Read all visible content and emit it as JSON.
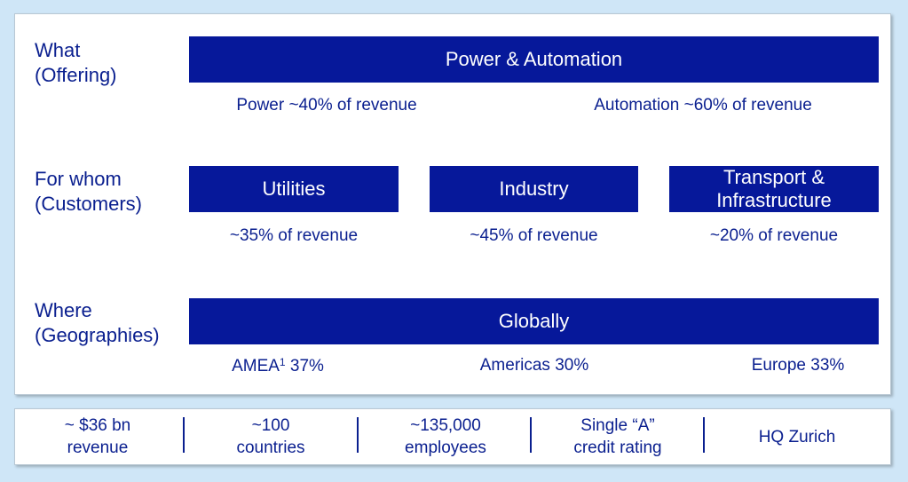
{
  "rows": {
    "what": {
      "label1": "What",
      "label2": "(Offering)",
      "bar": "Power & Automation",
      "sub_left": "Power ~40% of revenue",
      "sub_right": "Automation ~60% of revenue"
    },
    "for_whom": {
      "label1": "For whom",
      "label2": "(Customers)",
      "segments": [
        {
          "name": "Utilities",
          "share": "~35% of revenue"
        },
        {
          "name": "Industry",
          "share": "~45% of revenue"
        },
        {
          "name_line1": "Transport &",
          "name_line2": "Infrastructure",
          "share": "~20% of revenue"
        }
      ]
    },
    "where": {
      "label1": "Where",
      "label2": "(Geographies)",
      "bar": "Globally",
      "amea_name": "AMEA",
      "amea_footnote": "1",
      "amea_value": "37%",
      "americas": "Americas 30%",
      "europe": "Europe 33%"
    }
  },
  "footer": [
    {
      "line1": "~ $36 bn",
      "line2": "revenue"
    },
    {
      "line1": "~100",
      "line2": "countries"
    },
    {
      "line1": "~135,000",
      "line2": "employees"
    },
    {
      "line1": "Single “A”",
      "line2": "credit rating"
    },
    {
      "line1": "HQ Zurich"
    }
  ]
}
